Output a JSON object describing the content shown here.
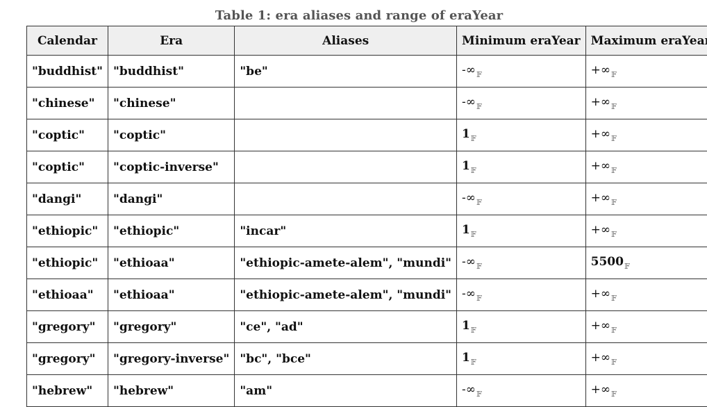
{
  "caption": "Table 1: era aliases and range of eraYear",
  "columns": [
    "Calendar",
    "Era",
    "Aliases",
    "Minimum eraYear",
    "Maximum eraYear"
  ],
  "float_subscript": "𝔽",
  "rows": [
    {
      "calendar": "\"buddhist\"",
      "era": "\"buddhist\"",
      "aliases": "\"be\"",
      "min": "-∞",
      "max": "+∞"
    },
    {
      "calendar": "\"chinese\"",
      "era": "\"chinese\"",
      "aliases": "",
      "min": "-∞",
      "max": "+∞"
    },
    {
      "calendar": "\"coptic\"",
      "era": "\"coptic\"",
      "aliases": "",
      "min": "1",
      "max": "+∞"
    },
    {
      "calendar": "\"coptic\"",
      "era": "\"coptic-inverse\"",
      "aliases": "",
      "min": "1",
      "max": "+∞"
    },
    {
      "calendar": "\"dangi\"",
      "era": "\"dangi\"",
      "aliases": "",
      "min": "-∞",
      "max": "+∞"
    },
    {
      "calendar": "\"ethiopic\"",
      "era": "\"ethiopic\"",
      "aliases": "\"incar\"",
      "min": "1",
      "max": "+∞"
    },
    {
      "calendar": "\"ethiopic\"",
      "era": "\"ethioaa\"",
      "aliases": "\"ethiopic-amete-alem\", \"mundi\"",
      "min": "-∞",
      "max": "5500"
    },
    {
      "calendar": "\"ethioaa\"",
      "era": "\"ethioaa\"",
      "aliases": "\"ethiopic-amete-alem\", \"mundi\"",
      "min": "-∞",
      "max": "+∞"
    },
    {
      "calendar": "\"gregory\"",
      "era": "\"gregory\"",
      "aliases": "\"ce\", \"ad\"",
      "min": "1",
      "max": "+∞"
    },
    {
      "calendar": "\"gregory\"",
      "era": "\"gregory-inverse\"",
      "aliases": "\"bc\", \"bce\"",
      "min": "1",
      "max": "+∞"
    },
    {
      "calendar": "\"hebrew\"",
      "era": "\"hebrew\"",
      "aliases": "\"am\"",
      "min": "-∞",
      "max": "+∞"
    }
  ]
}
